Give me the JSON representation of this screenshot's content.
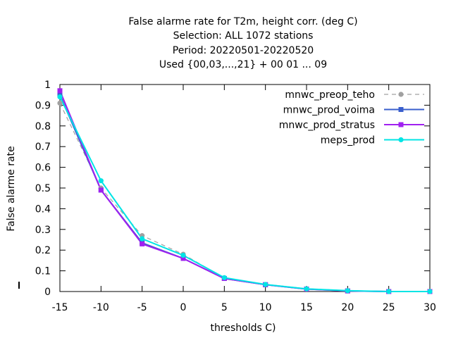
{
  "chart_data": {
    "type": "line",
    "title_lines": [
      "False alarme rate  for T2m, height corr. (deg C)",
      "Selection: ALL    1072 stations",
      "Period: 20220501-20220520",
      "Used {00,03,...,21} + 00 01 ... 09"
    ],
    "xlabel": "thresholds C)",
    "ylabel": "False alarme rate",
    "xlim": [
      -15,
      30
    ],
    "ylim": [
      0,
      1
    ],
    "xticks": [
      -15,
      -10,
      -5,
      0,
      5,
      10,
      15,
      20,
      25,
      30
    ],
    "yticks": [
      0,
      0.1,
      0.2,
      0.3,
      0.4,
      0.5,
      0.6,
      0.7,
      0.8,
      0.9,
      1
    ],
    "ytick_labels": [
      "0",
      "0.1",
      "0.2",
      "0.3",
      "0.4",
      "0.5",
      "0.6",
      "0.7",
      "0.8",
      "0.9",
      "1"
    ],
    "legend_position": "top-right",
    "x": [
      -15,
      -10,
      -5,
      0,
      5,
      10,
      15,
      20,
      25,
      30
    ],
    "series": [
      {
        "name": "mnwc_preop_teho",
        "color": "#a0a0a0",
        "dashed": true,
        "marker": "circle",
        "values": [
          0.91,
          0.5,
          0.27,
          0.18,
          0.065,
          0.033,
          0.012,
          0.003,
          0.0,
          0.0
        ]
      },
      {
        "name": "mnwc_prod_voima",
        "color": "#3a5fcd",
        "dashed": false,
        "marker": "square",
        "values": [
          0.95,
          0.49,
          0.235,
          0.16,
          0.063,
          0.033,
          0.012,
          0.003,
          0.0,
          0.0
        ]
      },
      {
        "name": "mnwc_prod_stratus",
        "color": "#a020f0",
        "dashed": false,
        "marker": "square",
        "values": [
          0.97,
          0.49,
          0.23,
          0.16,
          0.063,
          0.033,
          0.012,
          0.003,
          0.0,
          0.0
        ]
      },
      {
        "name": "meps_prod",
        "color": "#00e5e5",
        "dashed": false,
        "marker": "circle",
        "values": [
          0.94,
          0.535,
          0.255,
          0.175,
          0.067,
          0.034,
          0.013,
          0.004,
          0.0,
          0.0
        ]
      }
    ]
  }
}
